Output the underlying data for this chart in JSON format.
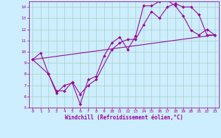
{
  "xlabel": "Windchill (Refroidissement éolien,°C)",
  "bg_color": "#cceeff",
  "line_color": "#990099",
  "grid_color": "#aaccbb",
  "xlim": [
    -0.5,
    23.5
  ],
  "ylim": [
    5,
    14.5
  ],
  "xticks": [
    0,
    1,
    2,
    3,
    4,
    5,
    6,
    7,
    8,
    9,
    10,
    11,
    12,
    13,
    14,
    15,
    16,
    17,
    18,
    19,
    20,
    21,
    22,
    23
  ],
  "yticks": [
    5,
    6,
    7,
    8,
    9,
    10,
    11,
    12,
    13,
    14
  ],
  "series1_x": [
    0,
    1,
    2,
    3,
    4,
    5,
    6,
    7,
    8,
    9,
    10,
    11,
    12,
    13,
    14,
    15,
    16,
    17,
    18,
    19,
    20,
    21,
    22,
    23
  ],
  "series1_y": [
    9.3,
    9.9,
    8.0,
    6.3,
    7.0,
    7.2,
    5.3,
    7.5,
    7.8,
    9.6,
    10.8,
    11.3,
    10.2,
    11.4,
    14.1,
    14.1,
    14.5,
    14.6,
    14.1,
    13.2,
    11.9,
    11.5,
    12.0,
    11.5
  ],
  "series2_x": [
    0,
    2,
    3,
    4,
    5,
    6,
    7,
    8,
    10,
    11,
    12,
    13,
    14,
    15,
    16,
    17,
    18,
    19,
    20,
    21,
    22,
    23
  ],
  "series2_y": [
    9.3,
    8.0,
    6.5,
    6.5,
    7.3,
    6.2,
    7.0,
    7.5,
    10.2,
    10.8,
    11.1,
    11.1,
    12.4,
    13.6,
    13.0,
    14.0,
    14.3,
    14.0,
    14.0,
    13.3,
    11.5,
    11.5
  ],
  "trend_x": [
    0,
    23
  ],
  "trend_y": [
    9.3,
    11.5
  ]
}
